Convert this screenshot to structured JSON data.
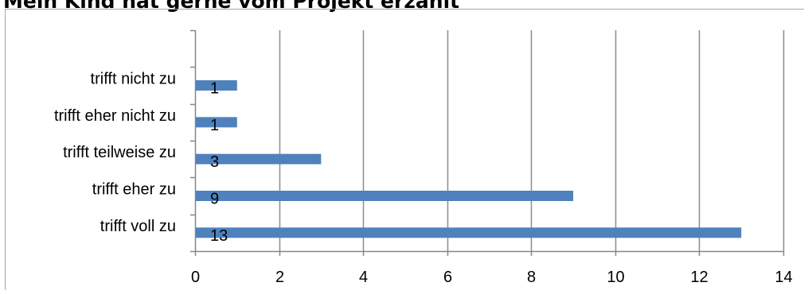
{
  "chart_data": {
    "type": "bar",
    "orientation": "horizontal",
    "title": "Mein Kind hat gerne vom Projekt erzählt",
    "categories": [
      "trifft voll zu",
      "trifft eher zu",
      "trifft teilweise zu",
      "trifft eher nicht zu",
      "trifft nicht zu"
    ],
    "values": [
      13,
      9,
      3,
      1,
      1
    ],
    "xlim": [
      0,
      14
    ],
    "xticks": [
      0,
      2,
      4,
      6,
      8,
      10,
      12,
      14
    ],
    "grid": true,
    "legend": "none",
    "bar_color": "#4f81bd",
    "grid_color": "#8c8c8c",
    "axis_color": "#868686"
  }
}
